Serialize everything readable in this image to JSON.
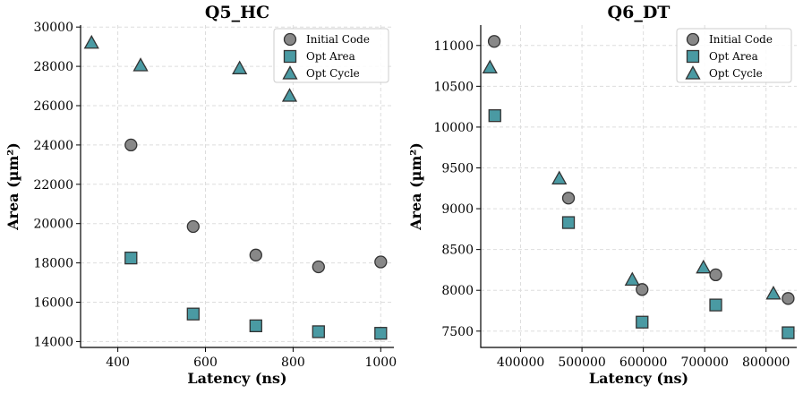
{
  "chart_data": [
    {
      "type": "scatter",
      "title": "Q5_HC",
      "xlabel": "Latency (ns)",
      "ylabel": "Area (µm²)",
      "xlim": [
        315,
        1030
      ],
      "ylim": [
        13700,
        30100
      ],
      "xticks": [
        400,
        600,
        800,
        1000
      ],
      "yticks": [
        14000,
        16000,
        18000,
        20000,
        22000,
        24000,
        26000,
        28000,
        30000
      ],
      "grid": true,
      "legend_position": "top-right",
      "series": [
        {
          "name": "Initial Code",
          "marker": "circle",
          "color": "#888888",
          "points": [
            [
              430,
              24000
            ],
            [
              572,
              19850
            ],
            [
              715,
              18400
            ],
            [
              858,
              17800
            ],
            [
              1000,
              18050
            ]
          ]
        },
        {
          "name": "Opt Area",
          "marker": "square",
          "color": "#4a9aa3",
          "points": [
            [
              430,
              18250
            ],
            [
              572,
              15400
            ],
            [
              715,
              14800
            ],
            [
              858,
              14500
            ],
            [
              1000,
              14420
            ]
          ]
        },
        {
          "name": "Opt Cycle",
          "marker": "triangle",
          "color": "#4a9aa3",
          "points": [
            [
              340,
              29200
            ],
            [
              452,
              28050
            ],
            [
              678,
              27900
            ],
            [
              792,
              26500
            ]
          ]
        }
      ]
    },
    {
      "type": "scatter",
      "title": "Q6_DT",
      "xlabel": "Latency (ns)",
      "ylabel": "Area (µm²)",
      "xlim": [
        335000,
        850000
      ],
      "ylim": [
        7300,
        11250
      ],
      "xticks": [
        400000,
        500000,
        600000,
        700000,
        800000
      ],
      "yticks": [
        7500,
        8000,
        8500,
        9000,
        9500,
        10000,
        10500,
        11000
      ],
      "grid": true,
      "legend_position": "top-right",
      "series": [
        {
          "name": "Initial Code",
          "marker": "circle",
          "color": "#888888",
          "points": [
            [
              357000,
              11050
            ],
            [
              478000,
              9130
            ],
            [
              598000,
              8010
            ],
            [
              718000,
              8190
            ],
            [
              836000,
              7900
            ]
          ]
        },
        {
          "name": "Opt Area",
          "marker": "square",
          "color": "#4a9aa3",
          "points": [
            [
              358000,
              10140
            ],
            [
              478000,
              8830
            ],
            [
              598000,
              7610
            ],
            [
              718000,
              7820
            ],
            [
              836000,
              7480
            ]
          ]
        },
        {
          "name": "Opt Cycle",
          "marker": "triangle",
          "color": "#4a9aa3",
          "points": [
            [
              350000,
              10730
            ],
            [
              463000,
              9370
            ],
            [
              582000,
              8130
            ],
            [
              698000,
              8280
            ],
            [
              812000,
              7960
            ]
          ]
        }
      ]
    }
  ]
}
